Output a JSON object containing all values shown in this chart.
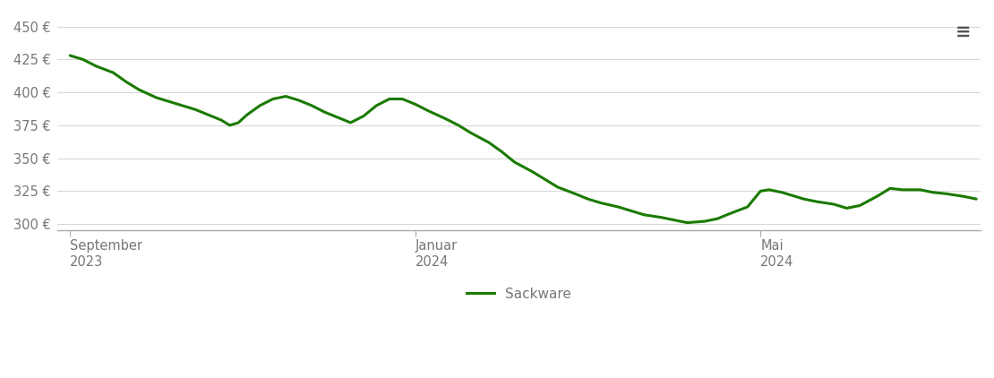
{
  "line_color": "#1a7a00",
  "line_width": 2.2,
  "background_color": "#ffffff",
  "grid_color": "#d8d8d8",
  "tick_label_color": "#777777",
  "legend_label": "Sackware",
  "hamburger_color": "#555555",
  "ylim": [
    295,
    460
  ],
  "yticks": [
    300,
    325,
    350,
    375,
    400,
    425,
    450
  ],
  "ytick_labels": [
    "300 €",
    "325 €",
    "350 €",
    "375 €",
    "400 €",
    "425 €",
    "450 €"
  ],
  "xtick_positions": [
    0,
    8.0,
    16.0
  ],
  "xtick_labels": [
    "September\n2023",
    "Januar\n2024",
    "Mai\n2024"
  ],
  "x_data": [
    0,
    0.3,
    0.6,
    1.0,
    1.3,
    1.6,
    2.0,
    2.3,
    2.6,
    2.9,
    3.2,
    3.5,
    3.7,
    3.9,
    4.1,
    4.4,
    4.7,
    5.0,
    5.3,
    5.6,
    5.9,
    6.2,
    6.5,
    6.8,
    7.1,
    7.4,
    7.7,
    8.0,
    8.3,
    8.7,
    9.0,
    9.3,
    9.7,
    10.0,
    10.3,
    10.7,
    11.0,
    11.3,
    11.7,
    12.0,
    12.3,
    12.7,
    13.0,
    13.3,
    13.7,
    14.0,
    14.3,
    14.7,
    15.0,
    15.3,
    15.7,
    16.0,
    16.2,
    16.5,
    16.7,
    17.0,
    17.3,
    17.7,
    18.0,
    18.3,
    18.7,
    19.0,
    19.3,
    19.7,
    20.0,
    20.3,
    20.7,
    21.0
  ],
  "y_data": [
    428,
    425,
    420,
    415,
    408,
    402,
    396,
    393,
    390,
    387,
    383,
    379,
    375,
    377,
    383,
    390,
    395,
    397,
    394,
    390,
    385,
    381,
    377,
    382,
    390,
    395,
    395,
    391,
    386,
    380,
    375,
    369,
    362,
    355,
    347,
    340,
    334,
    328,
    323,
    319,
    316,
    313,
    310,
    307,
    305,
    303,
    301,
    302,
    304,
    308,
    313,
    325,
    326,
    324,
    322,
    319,
    317,
    315,
    312,
    314,
    321,
    327,
    326,
    326,
    324,
    323,
    321,
    319
  ]
}
